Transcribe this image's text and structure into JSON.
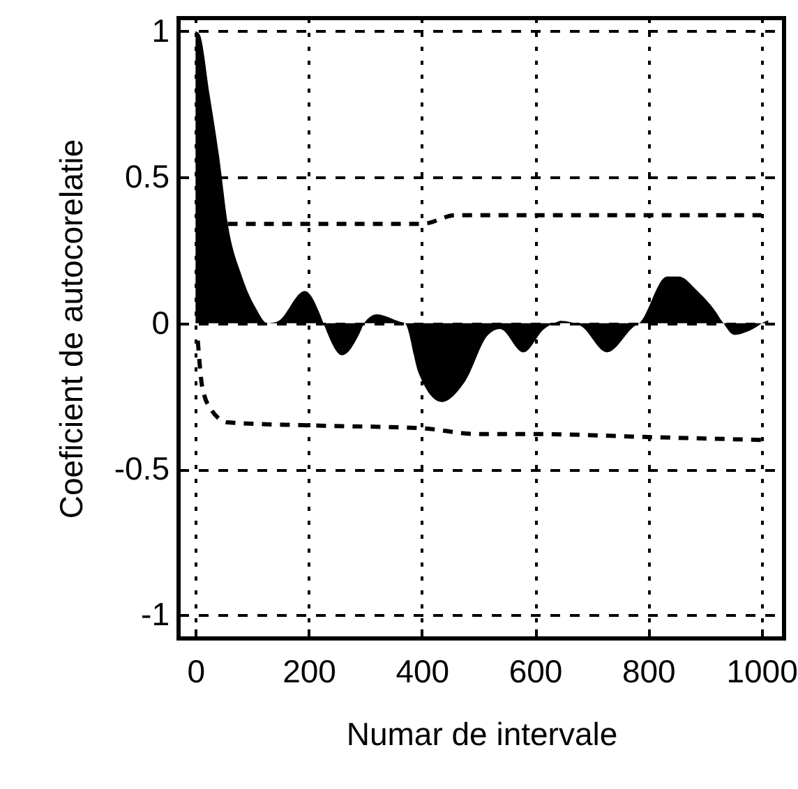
{
  "chart_data": {
    "type": "area",
    "xlabel": "Numar de intervale",
    "ylabel": "Coeficient de autocorelatie",
    "xlim": [
      -30,
      1040
    ],
    "ylim": [
      -1.08,
      1.045
    ],
    "xticks": [
      0,
      200,
      400,
      600,
      800,
      1000
    ],
    "yticks": [
      -1,
      -0.5,
      0,
      0.5,
      1
    ],
    "grid": true,
    "series": [
      {
        "color": "#000000",
        "x": [
          0,
          7,
          25,
          41,
          57,
          82,
          107,
          127,
          144,
          193,
          222,
          226,
          259,
          291,
          298,
          320,
          361,
          370,
          394,
          435,
          476,
          517,
          538,
          579,
          616,
          640,
          645,
          681,
          727,
          776,
          784,
          833,
          854,
          887,
          919,
          931,
          952,
          985,
          1006,
          1012
        ],
        "values": [
          1,
          0.99,
          0.78,
          0.58,
          0.34,
          0.16,
          0.05,
          0,
          0.005,
          0.11,
          0.02,
          0,
          -0.11,
          -0.03,
          0,
          0.03,
          0.005,
          0,
          -0.17,
          -0.27,
          -0.2,
          -0.04,
          -0.02,
          -0.1,
          -0.02,
          0.005,
          0.008,
          -0.01,
          -0.1,
          -0.01,
          0,
          0.16,
          0.16,
          0.11,
          0.04,
          0.005,
          -0.04,
          -0.02,
          0.005,
          0.01
        ]
      },
      {
        "type": "line",
        "color": "#000000",
        "line_style": "dashed",
        "x": [
          57,
          200,
          400,
          460,
          600,
          800,
          1000
        ],
        "values": [
          0.34,
          0.34,
          0.34,
          0.37,
          0.37,
          0.37,
          0.37
        ]
      },
      {
        "type": "line",
        "color": "#000000",
        "line_style": "dashed",
        "x": [
          4,
          12,
          29,
          57,
          200,
          400,
          500,
          600,
          800,
          1000
        ],
        "values": [
          -0.06,
          -0.22,
          -0.3,
          -0.34,
          -0.35,
          -0.36,
          -0.38,
          -0.38,
          -0.39,
          -0.4
        ]
      }
    ]
  }
}
